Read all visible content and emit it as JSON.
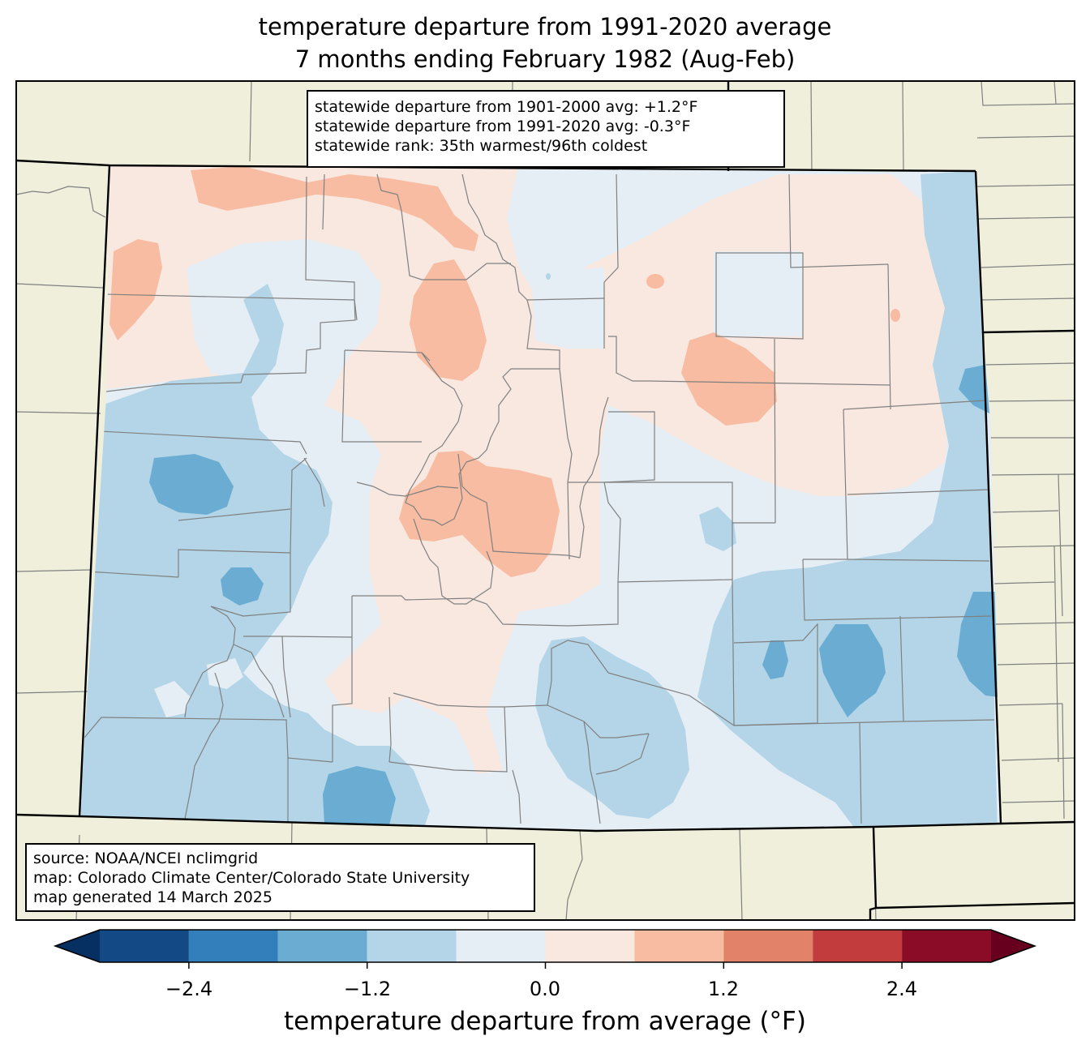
{
  "title": {
    "line1": "temperature departure from 1991-2020 average",
    "line2": "7 months ending February 1982 (Aug-Feb)"
  },
  "stats": {
    "line1": "statewide departure from 1901-2000 avg: +1.2°F",
    "line2": "statewide departure from 1991-2020 avg: -0.3°F",
    "line3": "statewide rank: 35th warmest/96th coldest"
  },
  "source": {
    "line1": "source: NOAA/NCEI nclimgrid",
    "line2": "map: Colorado Climate Center/Colorado State University",
    "line3": "map generated 14 March 2025"
  },
  "colorbar": {
    "label": "temperature departure from average (°F)",
    "ticks": [
      "−2.4",
      "−1.2",
      "0.0",
      "1.2",
      "2.4"
    ],
    "bins": [
      {
        "min": -3.0,
        "max": -2.4,
        "color": "#134a86"
      },
      {
        "min": -2.4,
        "max": -1.8,
        "color": "#327fbb"
      },
      {
        "min": -1.8,
        "max": -1.2,
        "color": "#6badd2"
      },
      {
        "min": -1.2,
        "max": -0.6,
        "color": "#b3d5e7"
      },
      {
        "min": -0.6,
        "max": 0.0,
        "color": "#e5eef5"
      },
      {
        "min": 0.0,
        "max": 0.6,
        "color": "#f9e8e0"
      },
      {
        "min": 0.6,
        "max": 1.2,
        "color": "#f7bca2"
      },
      {
        "min": 1.2,
        "max": 1.8,
        "color": "#e28369"
      },
      {
        "min": 1.8,
        "max": 2.4,
        "color": "#c23c3d"
      },
      {
        "min": 2.4,
        "max": 3.0,
        "color": "#8b0c26"
      }
    ],
    "under_color": "#053061",
    "over_color": "#67001f"
  },
  "map": {
    "land_color": "#efefdc",
    "county_line_color": "#808080",
    "border_color": "#000000"
  }
}
